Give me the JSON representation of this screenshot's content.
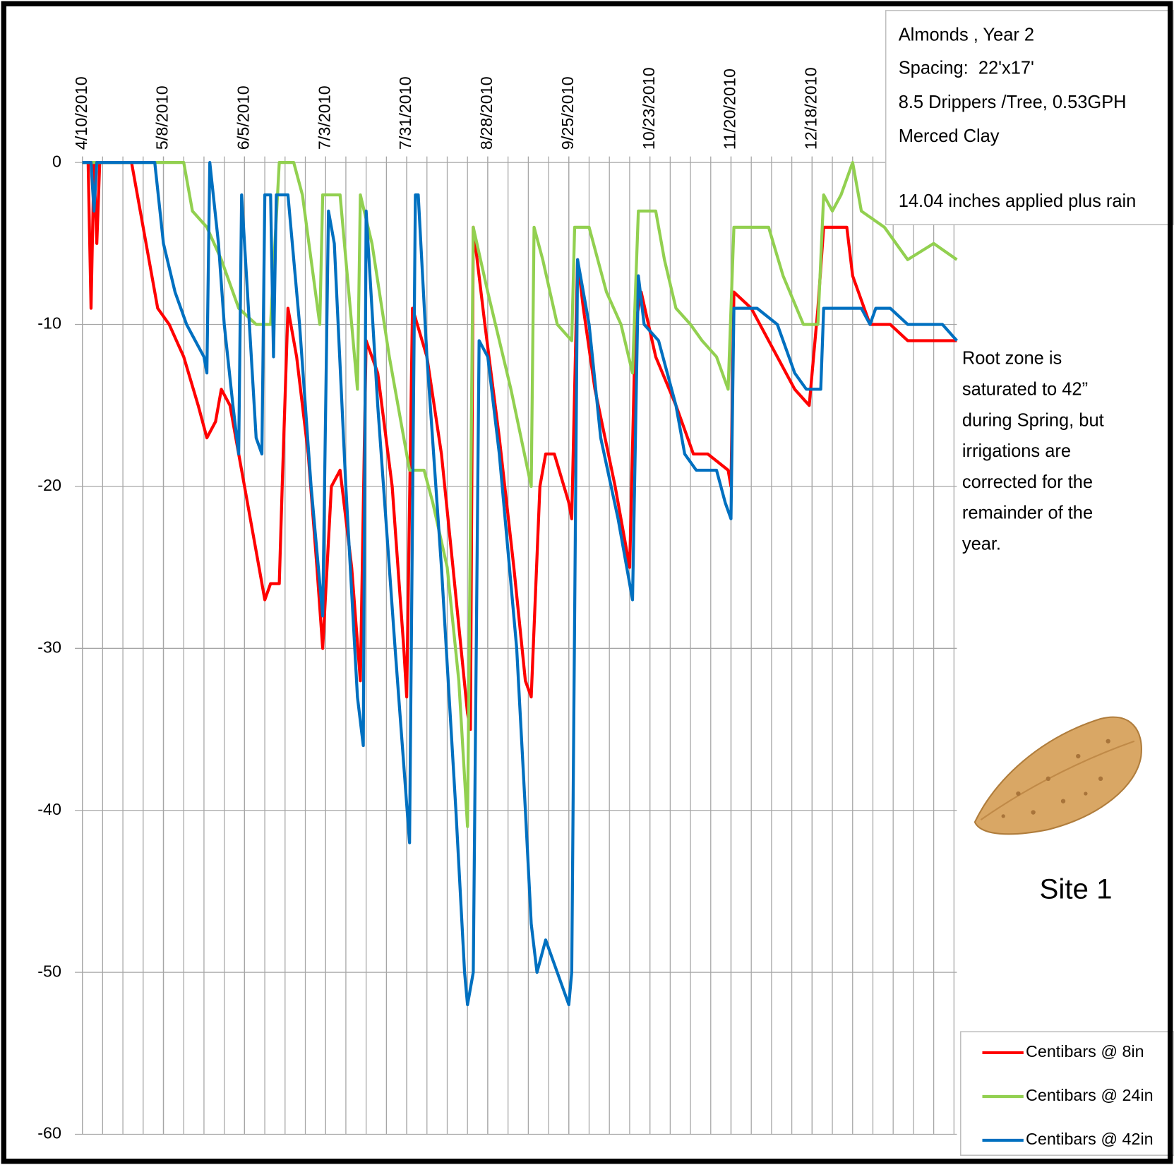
{
  "chart_data": {
    "type": "line",
    "info_box": [
      "Almonds , Year 2",
      "Spacing:  22'x17'",
      "8.5 Drippers /Tree, 0.53GPH",
      "Merced Clay",
      "14.04 inches applied plus rain"
    ],
    "annotation": [
      "Root zone is",
      "saturated to 42”",
      "during Spring, but",
      "irrigations are",
      "corrected for the",
      "remainder of the",
      "year."
    ],
    "site_label": "Site 1",
    "xlim": [
      "4/10/2010",
      "2/6/2011"
    ],
    "xticks": [
      "4/10/2010",
      "5/8/2010",
      "6/5/2010",
      "7/3/2010",
      "7/31/2010",
      "8/28/2010",
      "9/25/2010",
      "10/23/2010",
      "11/20/2010",
      "12/18/2010"
    ],
    "xminorticks_days": 7,
    "ylim": [
      -60,
      0
    ],
    "yticks": [
      0,
      -10,
      -20,
      -30,
      -40,
      -50,
      -60
    ],
    "grid": true,
    "legend": "lower right",
    "series": [
      {
        "name": "Centibars @ 8in",
        "color": "#ff0000",
        "x": [
          "4/10/2010",
          "4/12/2010",
          "4/13/2010",
          "4/14/2010",
          "4/15/2010",
          "4/16/2010",
          "4/27/2010",
          "5/6/2010",
          "5/10/2010",
          "5/15/2010",
          "5/20/2010",
          "5/23/2010",
          "5/26/2010",
          "5/28/2010",
          "5/31/2010",
          "6/3/2010",
          "6/5/2010",
          "6/9/2010",
          "6/12/2010",
          "6/14/2010",
          "6/17/2010",
          "6/18/2010",
          "6/20/2010",
          "6/23/2010",
          "6/27/2010",
          "6/30/2010",
          "7/2/2010",
          "7/5/2010",
          "7/8/2010",
          "7/12/2010",
          "7/15/2010",
          "7/17/2010",
          "7/21/2010",
          "7/26/2010",
          "7/30/2010",
          "7/31/2010",
          "8/2/2010",
          "8/7/2010",
          "8/12/2010",
          "8/16/2010",
          "8/21/2010",
          "8/22/2010",
          "8/23/2010",
          "8/27/2010",
          "9/1/2010",
          "9/6/2010",
          "9/10/2010",
          "9/12/2010",
          "9/15/2010",
          "9/17/2010",
          "9/20/2010",
          "9/25/2010",
          "9/26/2010",
          "9/28/2010",
          "9/30/2010",
          "10/4/2010",
          "10/11/2010",
          "10/16/2010",
          "10/18/2010",
          "10/20/2010",
          "10/25/2010",
          "11/1/2010",
          "11/7/2010",
          "11/12/2010",
          "11/19/2010",
          "11/20/2010",
          "11/21/2010",
          "11/27/2010",
          "12/6/2010",
          "12/12/2010",
          "12/17/2010",
          "12/20/2010",
          "12/22/2010",
          "12/30/2010",
          "1/1/2011",
          "1/7/2011",
          "1/14/2011",
          "1/20/2011",
          "2/6/2011"
        ],
        "values": [
          0,
          0,
          -9,
          0,
          -5,
          0,
          0,
          -9,
          -10,
          -12,
          -15,
          -17,
          -16,
          -14,
          -15,
          -18,
          -20,
          -24,
          -27,
          -26,
          -26,
          -20,
          -9,
          -12,
          -18,
          -25,
          -30,
          -20,
          -19,
          -25,
          -32,
          -11,
          -13,
          -20,
          -30,
          -33,
          -9,
          -12,
          -18,
          -25,
          -34,
          -35,
          -4,
          -10,
          -17,
          -25,
          -32,
          -33,
          -20,
          -18,
          -18,
          -21,
          -22,
          -6,
          -9,
          -14,
          -20,
          -25,
          -10,
          -8,
          -12,
          -15,
          -18,
          -18,
          -19,
          -20,
          -8,
          -9,
          -12,
          -14,
          -15,
          -9,
          -4,
          -4,
          -7,
          -10,
          -10,
          -11,
          -11
        ]
      },
      {
        "name": "Centibars @ 24in",
        "color": "#92d050",
        "x": [
          "4/10/2010",
          "5/15/2010",
          "5/18/2010",
          "5/23/2010",
          "5/28/2010",
          "6/3/2010",
          "6/9/2010",
          "6/14/2010",
          "6/17/2010",
          "6/22/2010",
          "6/25/2010",
          "7/1/2010",
          "7/2/2010",
          "7/8/2010",
          "7/12/2010",
          "7/14/2010",
          "7/15/2010",
          "7/19/2010",
          "7/25/2010",
          "8/1/2010",
          "8/6/2010",
          "8/9/2010",
          "8/14/2010",
          "8/18/2010",
          "8/21/2010",
          "8/23/2010",
          "8/28/2010",
          "9/5/2010",
          "9/12/2010",
          "9/13/2010",
          "9/16/2010",
          "9/21/2010",
          "9/26/2010",
          "9/27/2010",
          "10/2/2010",
          "10/8/2010",
          "10/13/2010",
          "10/17/2010",
          "10/19/2010",
          "10/25/2010",
          "10/28/2010",
          "11/1/2010",
          "11/6/2010",
          "11/10/2010",
          "11/15/2010",
          "11/19/2010",
          "11/21/2010",
          "12/3/2010",
          "12/8/2010",
          "12/15/2010",
          "12/20/2010",
          "12/22/2010",
          "12/25/2010",
          "12/28/2010",
          "1/1/2011",
          "1/4/2011",
          "1/12/2011",
          "1/16/2011",
          "1/20/2011",
          "1/29/2011",
          "2/6/2011"
        ],
        "values": [
          0,
          0,
          -3,
          -4,
          -6,
          -9,
          -10,
          -10,
          0,
          0,
          -2,
          -10,
          -2,
          -2,
          -10,
          -14,
          -2,
          -5,
          -12,
          -19,
          -19,
          -21,
          -25,
          -32,
          -41,
          -4,
          -8,
          -14,
          -20,
          -4,
          -6,
          -10,
          -11,
          -4,
          -4,
          -8,
          -10,
          -13,
          -3,
          -3,
          -6,
          -9,
          -10,
          -11,
          -12,
          -14,
          -4,
          -4,
          -7,
          -10,
          -10,
          -2,
          -3,
          -2,
          0,
          -3,
          -4,
          -5,
          -6,
          -5,
          -6
        ]
      },
      {
        "name": "Centibars @ 42in",
        "color": "#0070c0",
        "x": [
          "4/10/2010",
          "4/13/2010",
          "4/14/2010",
          "4/15/2010",
          "5/5/2010",
          "5/8/2010",
          "5/12/2010",
          "5/16/2010",
          "5/19/2010",
          "5/22/2010",
          "5/23/2010",
          "5/24/2010",
          "5/27/2010",
          "5/29/2010",
          "6/1/2010",
          "6/3/2010",
          "6/4/2010",
          "6/6/2010",
          "6/9/2010",
          "6/11/2010",
          "6/12/2010",
          "6/14/2010",
          "6/15/2010",
          "6/16/2010",
          "6/20/2010",
          "6/24/2010",
          "6/28/2010",
          "7/2/2010",
          "7/4/2010",
          "7/6/2010",
          "7/10/2010",
          "7/14/2010",
          "7/16/2010",
          "7/17/2010",
          "7/21/2010",
          "7/27/2010",
          "8/1/2010",
          "8/3/2010",
          "8/4/2010",
          "8/7/2010",
          "8/12/2010",
          "8/17/2010",
          "8/20/2010",
          "8/21/2010",
          "8/23/2010",
          "8/25/2010",
          "8/28/2010",
          "9/1/2010",
          "9/7/2010",
          "9/10/2010",
          "9/12/2010",
          "9/14/2010",
          "9/17/2010",
          "9/21/2010",
          "9/25/2010",
          "9/26/2010",
          "9/28/2010",
          "10/2/2010",
          "10/6/2010",
          "10/12/2010",
          "10/17/2010",
          "10/19/2010",
          "10/21/2010",
          "10/26/2010",
          "11/1/2010",
          "11/4/2010",
          "11/8/2010",
          "11/15/2010",
          "11/18/2010",
          "11/20/2010",
          "11/21/2010",
          "11/29/2010",
          "12/6/2010",
          "12/12/2010",
          "12/16/2010",
          "12/21/2010",
          "12/22/2010",
          "1/4/2011",
          "1/7/2011",
          "1/9/2011",
          "1/14/2011",
          "1/20/2011",
          "2/1/2011",
          "2/6/2011"
        ],
        "values": [
          0,
          0,
          -3,
          0,
          0,
          -5,
          -8,
          -10,
          -11,
          -12,
          -13,
          0,
          -5,
          -10,
          -15,
          -18,
          -2,
          -8,
          -17,
          -18,
          -2,
          -2,
          -12,
          -2,
          -2,
          -10,
          -20,
          -28,
          -3,
          -5,
          -20,
          -33,
          -36,
          -3,
          -15,
          -30,
          -42,
          -2,
          -2,
          -12,
          -25,
          -40,
          -50,
          -52,
          -50,
          -11,
          -12,
          -18,
          -30,
          -40,
          -47,
          -50,
          -48,
          -50,
          -52,
          -50,
          -6,
          -10,
          -17,
          -22,
          -27,
          -7,
          -10,
          -11,
          -15,
          -18,
          -19,
          -19,
          -21,
          -22,
          -9,
          -9,
          -10,
          -13,
          -14,
          -14,
          -9,
          -9,
          -10,
          -9,
          -9,
          -10,
          -10,
          -11
        ]
      }
    ]
  }
}
